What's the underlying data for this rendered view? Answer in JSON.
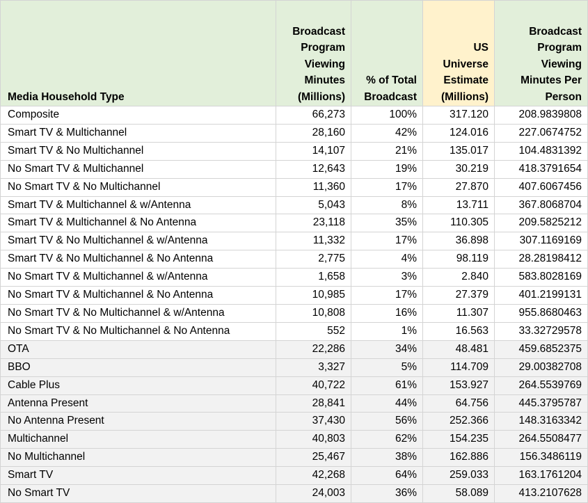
{
  "table": {
    "header": [
      {
        "lines": [
          "Media Household Type"
        ]
      },
      {
        "lines": [
          "Broadcast",
          "Program",
          "Viewing",
          "Minutes",
          "(Millions)"
        ]
      },
      {
        "lines": [
          "% of Total",
          "Broadcast"
        ]
      },
      {
        "lines": [
          "US",
          "Universe",
          "Estimate",
          "(Millions)"
        ]
      },
      {
        "lines": [
          "Broadcast",
          "Program",
          "Viewing",
          "Minutes Per",
          "Person"
        ]
      }
    ],
    "rows": [
      [
        "Composite",
        "66,273",
        "100%",
        "317.120",
        "208.9839808"
      ],
      [
        "Smart TV & Multichannel",
        "28,160",
        "42%",
        "124.016",
        "227.0674752"
      ],
      [
        "Smart TV & No Multichannel",
        "14,107",
        "21%",
        "135.017",
        "104.4831392"
      ],
      [
        "No Smart TV & Multichannel",
        "12,643",
        "19%",
        "30.219",
        "418.3791654"
      ],
      [
        "No Smart TV & No Multichannel",
        "11,360",
        "17%",
        "27.870",
        "407.6067456"
      ],
      [
        "Smart TV & Multichannel & w/Antenna",
        "5,043",
        "8%",
        "13.711",
        "367.8068704"
      ],
      [
        "Smart TV & Multichannel & No Antenna",
        "23,118",
        "35%",
        "110.305",
        "209.5825212"
      ],
      [
        "Smart TV & No Multichannel & w/Antenna",
        "11,332",
        "17%",
        "36.898",
        "307.1169169"
      ],
      [
        "Smart TV & No Multichannel & No Antenna",
        "2,775",
        "4%",
        "98.119",
        "28.28198412"
      ],
      [
        "No Smart TV & Multichannel & w/Antenna",
        "1,658",
        "3%",
        "2.840",
        "583.8028169"
      ],
      [
        "No Smart TV & Multichannel & No Antenna",
        "10,985",
        "17%",
        "27.379",
        "401.2199131"
      ],
      [
        "No Smart TV & No Multichannel & w/Antenna",
        "10,808",
        "16%",
        "11.307",
        "955.8680463"
      ],
      [
        "No Smart TV & No Multichannel & No Antenna",
        "552",
        "1%",
        "16.563",
        "33.32729578"
      ]
    ],
    "summary_rows": [
      [
        "OTA",
        "22,286",
        "34%",
        "48.481",
        "459.6852375"
      ],
      [
        "BBO",
        "3,327",
        "5%",
        "114.709",
        "29.00382708"
      ],
      [
        "Cable Plus",
        "40,722",
        "61%",
        "153.927",
        "264.5539769"
      ],
      [
        "Antenna Present",
        "28,841",
        "44%",
        "64.756",
        "445.3795787"
      ],
      [
        "No Antenna Present",
        "37,430",
        "56%",
        "252.366",
        "148.3163342"
      ],
      [
        "Multichannel",
        "40,803",
        "62%",
        "154.235",
        "264.5508477"
      ],
      [
        "No Multichannel",
        "25,467",
        "38%",
        "162.886",
        "156.3486119"
      ],
      [
        "Smart TV",
        "42,268",
        "64%",
        "259.033",
        "163.1761204"
      ],
      [
        "No Smart TV",
        "24,003",
        "36%",
        "58.089",
        "413.2107628"
      ]
    ]
  }
}
